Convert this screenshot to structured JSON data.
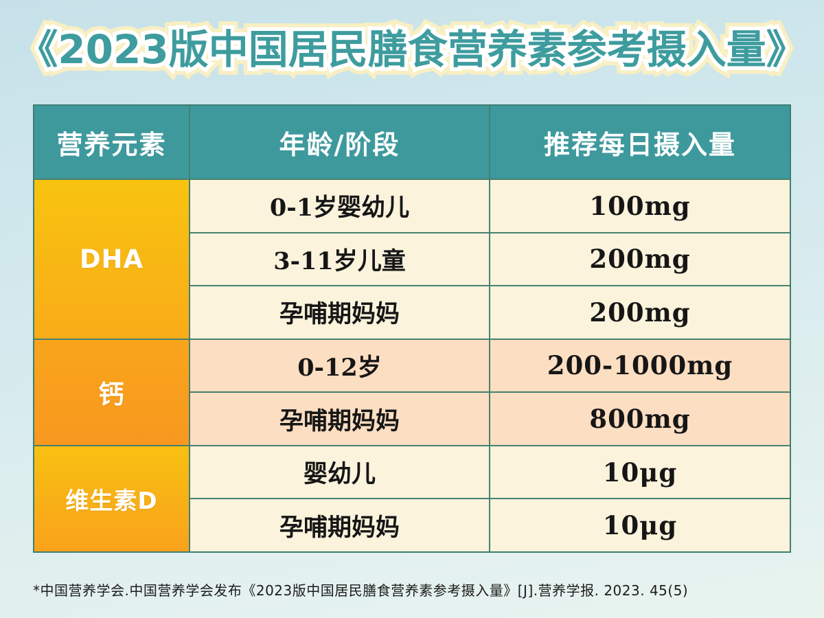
{
  "title": {
    "text": "《2023版中国居民膳食营养素参考摄入量》",
    "fill_color": "#3e9c9e",
    "inner_outline_color": "#ffffff",
    "outer_outline_color": "#f8efc3"
  },
  "table": {
    "headers": [
      "营养元素",
      "年龄/阶段",
      "推荐每日摄入量"
    ],
    "groups": [
      {
        "nutrient": "DHA",
        "tone": "cream",
        "rows": [
          {
            "stage": "0-1岁婴幼儿",
            "intake": "100mg"
          },
          {
            "stage": "3-11岁儿童",
            "intake": "200mg"
          },
          {
            "stage": "孕哺期妈妈",
            "intake": "200mg"
          }
        ]
      },
      {
        "nutrient": "钙",
        "tone": "peach",
        "rows": [
          {
            "stage": "0-12岁",
            "intake": "200-1000mg"
          },
          {
            "stage": "孕哺期妈妈",
            "intake": "800mg"
          }
        ]
      },
      {
        "nutrient": "维生素D",
        "tone": "cream",
        "rows": [
          {
            "stage": "婴幼儿",
            "intake": "10μg"
          },
          {
            "stage": "孕哺期妈妈",
            "intake": "10μg"
          }
        ]
      }
    ]
  },
  "footnote": {
    "text": "*中国营养学会.中国营养学会发布《2023版中国居民膳食营养素参考摄入量》[J].营养学报. 2023. 45(5)"
  },
  "colors": {
    "background_top": "#c6e1e9",
    "background_bottom": "#e9f4ef",
    "header_teal": "#3e999d",
    "border_teal_green": "#3e7d71",
    "row_cream": "#fbf3dc",
    "row_peach": "#fcdec2",
    "nutrient_gold_top": "#f8c30f",
    "nutrient_gold_bottom": "#f9ac19",
    "nutrient_orange_top": "#f9a51c",
    "nutrient_orange_bottom": "#f8981f",
    "cell_text": "#161616",
    "header_text": "#ffffff"
  }
}
